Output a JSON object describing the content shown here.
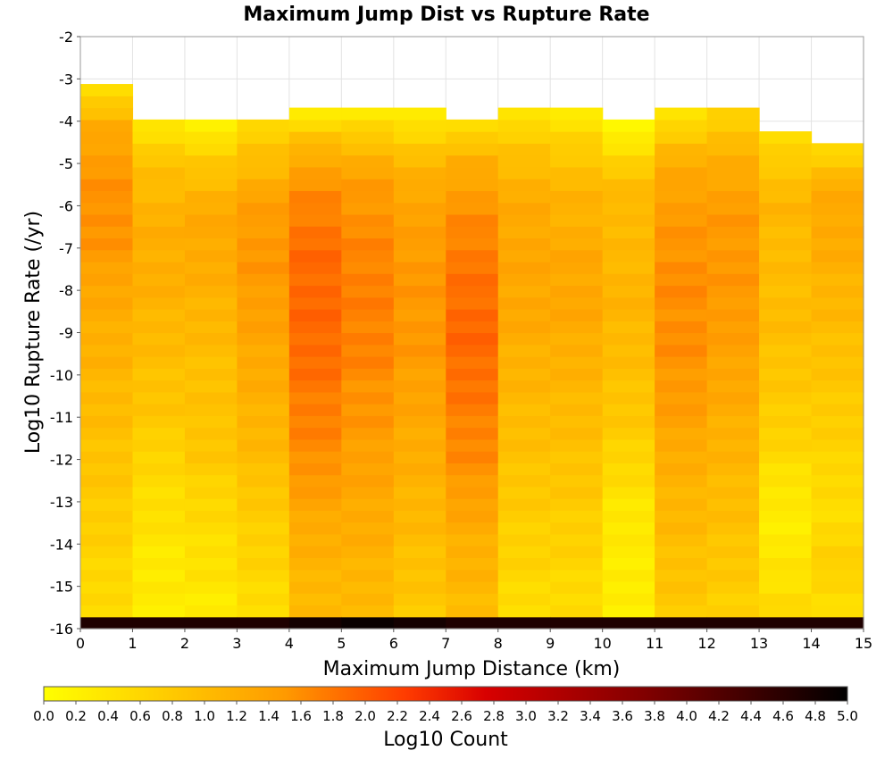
{
  "chart_data": {
    "type": "heatmap",
    "title": "Maximum Jump Dist vs Rupture Rate",
    "xlabel": "Maximum Jump Distance (km)",
    "ylabel": "Log10 Rupture Rate (/yr)",
    "xlim": [
      0,
      15
    ],
    "ylim": [
      -16,
      -2
    ],
    "x_ticks": [
      "0",
      "1",
      "2",
      "3",
      "4",
      "5",
      "6",
      "7",
      "8",
      "9",
      "10",
      "11",
      "12",
      "13",
      "14",
      "15"
    ],
    "y_ticks": [
      "-2",
      "-3",
      "-4",
      "-5",
      "-6",
      "-7",
      "-8",
      "-9",
      "-10",
      "-11",
      "-12",
      "-13",
      "-14",
      "-15",
      "-16"
    ],
    "x_bin_width": 1,
    "y_bin_width": 0.28,
    "y_bin_start": -16,
    "grid": true,
    "colorbar": {
      "label": "Log10 Count",
      "min": 0.0,
      "max": 5.0,
      "ticks": [
        "0.0",
        "0.2",
        "0.4",
        "0.6",
        "0.8",
        "1.0",
        "1.2",
        "1.4",
        "1.6",
        "1.8",
        "2.0",
        "2.2",
        "2.4",
        "2.6",
        "2.8",
        "3.0",
        "3.2",
        "3.4",
        "3.6",
        "3.8",
        "4.0",
        "4.2",
        "4.4",
        "4.6",
        "4.8",
        "5.0"
      ]
    },
    "column_tops": [
      -3.04,
      -3.88,
      -3.88,
      -3.88,
      -3.6,
      -3.6,
      -3.6,
      -3.88,
      -3.6,
      -3.6,
      -3.88,
      -3.6,
      -3.6,
      -4.16,
      -4.44
    ],
    "bottom_row_values": [
      4.7,
      4.7,
      4.7,
      4.7,
      4.8,
      4.9,
      4.8,
      4.7,
      4.7,
      4.7,
      4.7,
      4.7,
      4.7,
      4.7,
      4.7
    ],
    "column_profiles": [
      {
        "x": 0,
        "values": [
          0.5,
          1.3,
          1.5,
          1.6,
          1.5,
          1.3,
          1.2,
          1.1,
          1.0,
          0.9,
          0.8,
          0.7,
          0.6,
          0.5
        ]
      },
      {
        "x": 1,
        "values": [
          0.4,
          0.9,
          1.1,
          1.2,
          1.2,
          1.1,
          1.0,
          0.9,
          0.8,
          0.6,
          0.5,
          0.4,
          0.3,
          0.3
        ]
      },
      {
        "x": 2,
        "values": [
          0.2,
          0.8,
          1.2,
          1.3,
          1.2,
          1.1,
          1.0,
          0.9,
          0.9,
          0.8,
          0.6,
          0.5,
          0.4,
          0.3
        ]
      },
      {
        "x": 3,
        "values": [
          0.6,
          1.0,
          1.4,
          1.5,
          1.5,
          1.4,
          1.3,
          1.2,
          1.1,
          1.0,
          0.8,
          0.7,
          0.6,
          0.5
        ]
      },
      {
        "x": 4,
        "values": [
          0.3,
          1.2,
          1.6,
          1.8,
          1.9,
          1.9,
          1.9,
          1.8,
          1.7,
          1.6,
          1.4,
          1.2,
          1.1,
          1.0
        ]
      },
      {
        "x": 5,
        "values": [
          0.3,
          1.1,
          1.5,
          1.6,
          1.7,
          1.7,
          1.7,
          1.6,
          1.5,
          1.4,
          1.3,
          1.2,
          1.1,
          1.0
        ]
      },
      {
        "x": 6,
        "values": [
          0.3,
          0.9,
          1.3,
          1.4,
          1.5,
          1.5,
          1.5,
          1.4,
          1.3,
          1.2,
          1.1,
          1.0,
          0.9,
          0.8
        ]
      },
      {
        "x": 7,
        "values": [
          0.5,
          1.2,
          1.5,
          1.7,
          1.8,
          1.9,
          1.9,
          1.8,
          1.7,
          1.6,
          1.4,
          1.2,
          1.1,
          1.0
        ]
      },
      {
        "x": 8,
        "values": [
          0.4,
          0.9,
          1.2,
          1.3,
          1.3,
          1.3,
          1.2,
          1.1,
          1.0,
          0.9,
          0.8,
          0.7,
          0.6,
          0.5
        ]
      },
      {
        "x": 9,
        "values": [
          0.3,
          0.8,
          1.1,
          1.2,
          1.3,
          1.3,
          1.2,
          1.1,
          1.0,
          0.9,
          0.8,
          0.7,
          0.6,
          0.5
        ]
      },
      {
        "x": 10,
        "values": [
          0.1,
          0.7,
          1.1,
          1.0,
          1.1,
          1.1,
          1.0,
          0.9,
          0.8,
          0.6,
          0.4,
          0.3,
          0.3,
          0.2
        ]
      },
      {
        "x": 11,
        "values": [
          0.4,
          1.1,
          1.4,
          1.5,
          1.6,
          1.6,
          1.6,
          1.5,
          1.4,
          1.2,
          1.1,
          1.0,
          0.9,
          0.8
        ]
      },
      {
        "x": 12,
        "values": [
          0.7,
          1.1,
          1.4,
          1.5,
          1.5,
          1.5,
          1.4,
          1.3,
          1.2,
          1.1,
          1.0,
          0.9,
          0.8,
          0.7
        ]
      },
      {
        "x": 13,
        "values": [
          0.5,
          0.9,
          1.1,
          1.0,
          1.0,
          1.0,
          0.9,
          0.8,
          0.7,
          0.5,
          0.3,
          0.3,
          0.4,
          0.6
        ]
      },
      {
        "x": 14,
        "values": [
          0.6,
          1.2,
          1.3,
          1.2,
          1.1,
          1.0,
          0.9,
          0.8,
          0.7,
          0.6,
          0.5,
          0.6,
          0.7,
          0.4
        ]
      }
    ]
  }
}
